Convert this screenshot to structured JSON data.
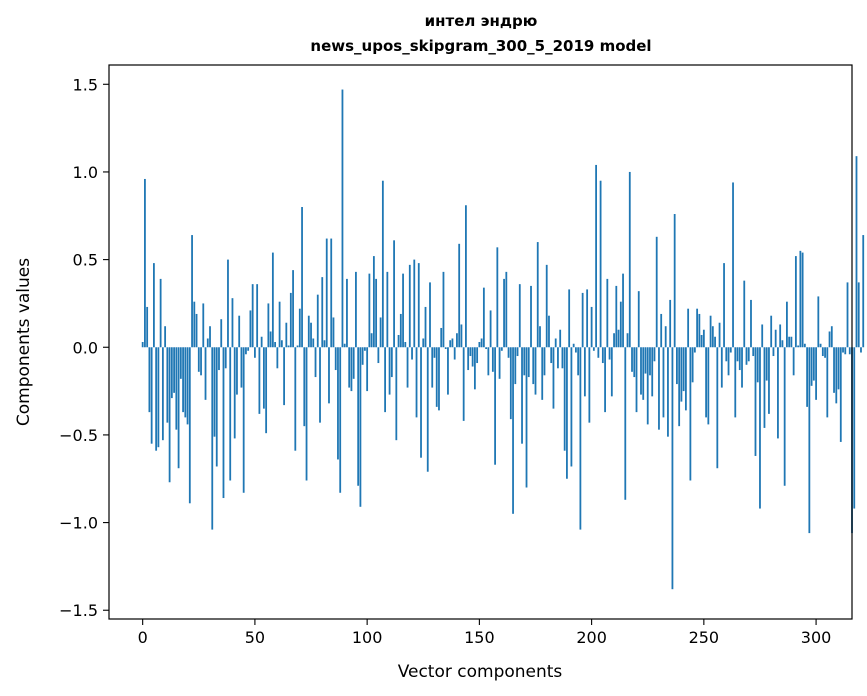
{
  "chart_data": {
    "type": "bar",
    "title": "интел эндрю",
    "subtitle": "news_upos_skipgram_300_5_2019 model",
    "xlabel": "Vector components",
    "ylabel": "Components values",
    "xlim": [
      -15,
      316
    ],
    "ylim": [
      -1.55,
      1.61
    ],
    "xticks": [
      0,
      50,
      100,
      150,
      200,
      250,
      300
    ],
    "xtick_labels": [
      "0",
      "50",
      "100",
      "150",
      "200",
      "250",
      "300"
    ],
    "yticks": [
      -1.5,
      -1.0,
      -0.5,
      0.0,
      0.5,
      1.0,
      1.5
    ],
    "ytick_labels": [
      "−1.5",
      "−1.0",
      "−0.5",
      "0.0",
      "0.5",
      "1.0",
      "1.5"
    ],
    "grid": false,
    "bar_color": "#1f77b4",
    "values": [
      0.03,
      0.96,
      0.23,
      -0.37,
      -0.55,
      0.48,
      -0.59,
      -0.57,
      0.39,
      -0.53,
      0.12,
      -0.43,
      -0.77,
      -0.29,
      -0.26,
      -0.47,
      -0.69,
      -0.18,
      -0.37,
      -0.4,
      -0.44,
      -0.89,
      0.64,
      0.26,
      0.19,
      -0.14,
      -0.16,
      0.25,
      -0.3,
      0.05,
      0.12,
      -1.04,
      -0.51,
      -0.68,
      -0.13,
      0.16,
      -0.86,
      -0.12,
      0.5,
      -0.76,
      0.28,
      -0.52,
      -0.27,
      0.18,
      -0.23,
      -0.83,
      -0.04,
      -0.02,
      0.21,
      0.36,
      -0.06,
      0.36,
      -0.38,
      0.06,
      -0.35,
      -0.49,
      0.25,
      0.09,
      0.54,
      0.03,
      -0.12,
      0.26,
      0.04,
      -0.33,
      0.14,
      0.01,
      0.31,
      0.44,
      -0.59,
      0.01,
      0.22,
      0.8,
      -0.45,
      -0.76,
      0.18,
      0.14,
      0.05,
      -0.17,
      0.3,
      -0.43,
      0.4,
      0.04,
      0.62,
      -0.32,
      0.62,
      0.17,
      -0.13,
      -0.64,
      -0.83,
      1.47,
      0.02,
      0.39,
      -0.23,
      -0.25,
      -0.18,
      0.43,
      -0.79,
      -0.91,
      -0.1,
      -0.02,
      -0.25,
      0.42,
      0.08,
      0.52,
      0.39,
      -0.09,
      0.17,
      0.95,
      -0.37,
      0.43,
      -0.27,
      -0.17,
      0.61,
      -0.53,
      0.07,
      0.19,
      0.42,
      0.03,
      -0.23,
      0.47,
      -0.07,
      0.5,
      -0.4,
      0.48,
      -0.63,
      0.05,
      0.23,
      -0.71,
      0.37,
      -0.23,
      -0.06,
      -0.34,
      -0.36,
      0.11,
      0.43,
      -0.01,
      -0.27,
      0.04,
      0.05,
      -0.07,
      0.08,
      0.59,
      0.13,
      -0.42,
      0.81,
      -0.13,
      -0.05,
      -0.11,
      -0.24,
      -0.09,
      0.03,
      0.05,
      0.34,
      -0.01,
      -0.16,
      0.21,
      -0.14,
      -0.67,
      0.57,
      -0.18,
      -0.02,
      0.39,
      0.43,
      -0.06,
      -0.41,
      -0.95,
      -0.21,
      -0.05,
      0.36,
      -0.55,
      -0.16,
      -0.8,
      -0.17,
      0.35,
      -0.21,
      -0.27,
      0.6,
      0.12,
      -0.3,
      -0.16,
      0.47,
      0.18,
      -0.09,
      -0.35,
      0.05,
      -0.12,
      0.1,
      -0.12,
      -0.59,
      -0.75,
      0.33,
      -0.68,
      0.02,
      -0.03,
      -0.16,
      -1.04,
      0.31,
      -0.28,
      0.33,
      -0.43,
      0.23,
      -0.02,
      1.04,
      -0.06,
      0.95,
      -0.09,
      -0.37,
      0.39,
      -0.07,
      -0.28,
      0.08,
      0.35,
      0.1,
      0.26,
      0.42,
      -0.87,
      0.08,
      1.0,
      -0.14,
      -0.17,
      -0.37,
      0.32,
      -0.27,
      -0.3,
      -0.15,
      -0.44,
      -0.16,
      -0.28,
      -0.08,
      0.63,
      -0.47,
      0.19,
      -0.4,
      0.12,
      -0.51,
      0.27,
      -1.38,
      0.76,
      -0.21,
      -0.45,
      -0.31,
      -0.25,
      -0.36,
      0.22,
      -0.76,
      -0.2,
      -0.03,
      0.22,
      0.19,
      0.07,
      0.1,
      -0.4,
      -0.44,
      0.18,
      0.12,
      0.06,
      -0.69,
      0.14,
      -0.23,
      0.48,
      -0.08,
      -0.16,
      -0.03,
      0.94,
      -0.4,
      -0.08,
      -0.13,
      -0.23,
      0.38,
      -0.1,
      -0.08,
      0.27,
      -0.05,
      -0.62,
      -0.2,
      -0.92,
      0.13,
      -0.46,
      -0.19,
      -0.38,
      0.18,
      -0.05,
      0.1,
      -0.52,
      0.13,
      0.04,
      -0.79,
      0.26,
      0.06,
      0.06,
      -0.16,
      0.52,
      0.01,
      0.55,
      0.54,
      0.02,
      -0.34,
      -1.06,
      -0.22,
      -0.19,
      -0.3,
      0.29,
      0.02,
      -0.05,
      -0.06,
      -0.4,
      0.09,
      0.12,
      -0.26,
      -0.32,
      -0.24,
      -0.54,
      -0.03,
      -0.04,
      0.37,
      -0.04,
      -1.06,
      -0.92,
      1.09,
      0.37,
      -0.03,
      0.64
    ]
  }
}
